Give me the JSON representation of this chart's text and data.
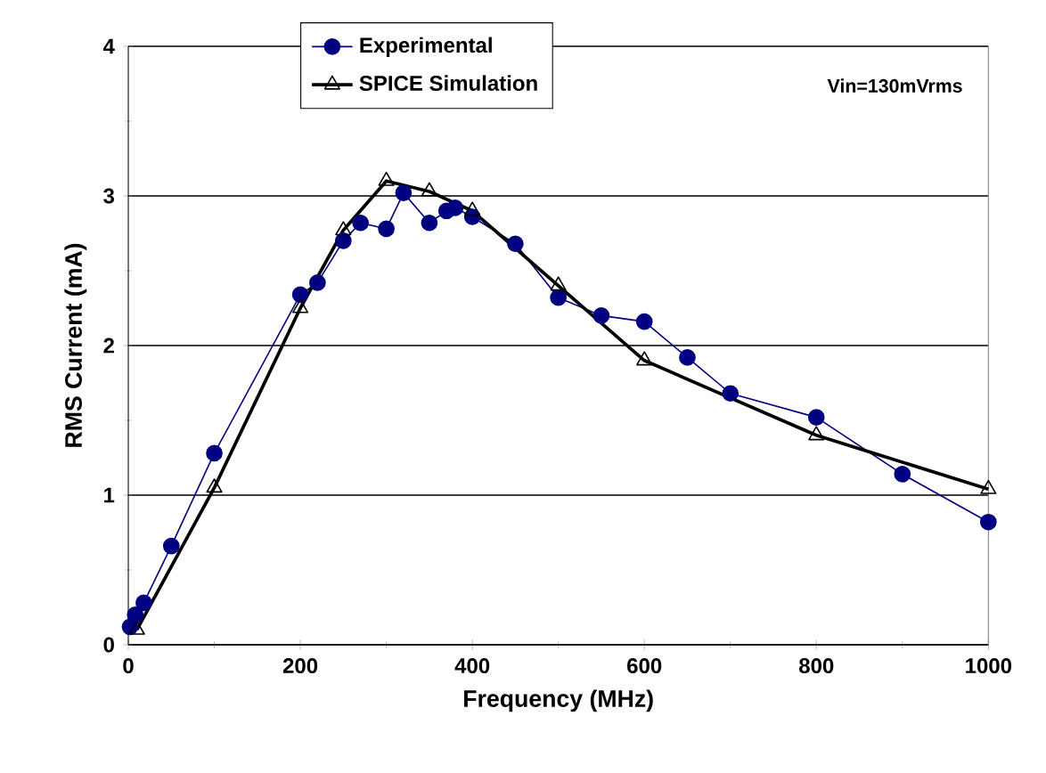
{
  "chart_data": {
    "type": "line",
    "xlabel": "Frequency (MHz)",
    "ylabel": "RMS Current (mA)",
    "xlim": [
      0,
      1000
    ],
    "ylim": [
      0,
      4
    ],
    "xticks": [
      0,
      200,
      400,
      600,
      800,
      1000
    ],
    "yticks": [
      0,
      1,
      2,
      3,
      4
    ],
    "grid": "y",
    "legend": "top",
    "annotations": [
      "Vin=130mVrms"
    ],
    "series": [
      {
        "name": "Experimental",
        "color": "#000080",
        "marker": "circle",
        "x": [
          2,
          8,
          18,
          50,
          100,
          200,
          220,
          250,
          270,
          300,
          320,
          350,
          370,
          380,
          400,
          450,
          500,
          550,
          600,
          650,
          700,
          800,
          900,
          1000
        ],
        "values": [
          0.12,
          0.2,
          0.28,
          0.66,
          1.28,
          2.34,
          2.42,
          2.7,
          2.82,
          2.78,
          3.02,
          2.82,
          2.9,
          2.92,
          2.86,
          2.68,
          2.32,
          2.2,
          2.16,
          1.92,
          1.68,
          1.52,
          1.14,
          0.82
        ]
      },
      {
        "name": "SPICE Simulation",
        "color": "#000000",
        "marker": "triangle",
        "x": [
          10,
          100,
          200,
          250,
          300,
          350,
          400,
          500,
          600,
          800,
          1000
        ],
        "values": [
          0.1,
          1.05,
          2.25,
          2.77,
          3.1,
          3.03,
          2.9,
          2.4,
          1.9,
          1.4,
          1.04
        ]
      }
    ]
  }
}
